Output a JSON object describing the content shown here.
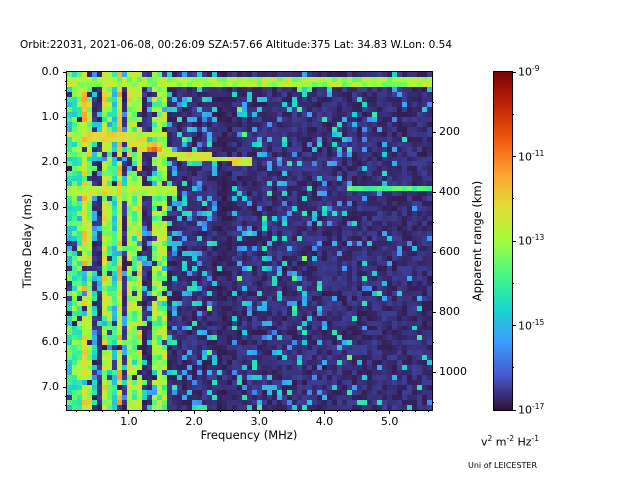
{
  "title": "Orbit:22031, 2021-06-08, 00:26:09 SZA:57.66 Altitude:375 Lat: 34.83 W.Lon: 0.54",
  "watermark": "Uni of LEICESTER",
  "chart_data": {
    "type": "heatmap",
    "description": "Radar sounder ionogram: spectral power density vs frequency and time delay. Bright surface echo line near 0.2 ms across all frequencies, dense cyan/green vertical interference stripes below ~1.6 MHz, an ionospheric echo trace from ~1.4 ms at 0.4 MHz descending to ~2.0 ms at 2.9 MHz with an orange peak near 1.4 MHz / 1.7 ms, a faint second trace near 2.6 ms, a dark quiet band near 2.45 MHz, and sparse blue noise speckle elsewhere.",
    "xlabel": "Frequency (MHz)",
    "ylabel": "Time Delay (ms)",
    "ylabel_right": "Apparent range (km)",
    "x_range": [
      0.05,
      5.65
    ],
    "y_range": [
      0.0,
      7.5
    ],
    "x_ticks": [
      1.0,
      2.0,
      3.0,
      4.0,
      5.0
    ],
    "x_tick_labels": [
      "1.0",
      "2.0",
      "3.0",
      "4.0",
      "5.0"
    ],
    "x_minor_step": 0.2,
    "y_ticks": [
      0,
      1,
      2,
      3,
      4,
      5,
      6,
      7
    ],
    "y_tick_labels": [
      "0.0",
      "1.0",
      "2.0",
      "3.0",
      "4.0",
      "5.0",
      "6.0",
      "7.0"
    ],
    "y_minor_step": 0.2,
    "right_ticks_km": [
      200,
      400,
      600,
      800,
      1000
    ],
    "right_tick_labels": [
      "200",
      "400",
      "600",
      "800",
      "1000"
    ],
    "right_minor_km": [
      100,
      300,
      500,
      700,
      900,
      1100
    ],
    "km_per_ms": 150,
    "colorbar": {
      "ticks_exp": [
        -9,
        -11,
        -13,
        -15,
        -17
      ],
      "minor_exp": [
        -10,
        -12,
        -14,
        -16
      ],
      "range_exp": [
        -17,
        -9
      ],
      "base": "10",
      "label_parts": [
        [
          "v",
          "2"
        ],
        [
          " m",
          "-2"
        ],
        [
          " Hz",
          "-1"
        ]
      ]
    },
    "colormap": "turbo",
    "colormap_stops": [
      [
        0.0,
        "#30123B"
      ],
      [
        0.1,
        "#4458CB"
      ],
      [
        0.2,
        "#3E9BFE"
      ],
      [
        0.3,
        "#18D6CB"
      ],
      [
        0.4,
        "#46F884"
      ],
      [
        0.5,
        "#A2FC3C"
      ],
      [
        0.6,
        "#E1DD37"
      ],
      [
        0.7,
        "#FEA130"
      ],
      [
        0.8,
        "#EF5A11"
      ],
      [
        0.9,
        "#C22403"
      ],
      [
        1.0,
        "#7A0403"
      ]
    ],
    "grid": {
      "cols": 73,
      "rows": 68
    },
    "seed": 1337,
    "features": {
      "surface_echo": {
        "delay": 0.22,
        "thickness": 0.12,
        "t": 0.42
      },
      "stripe_region": {
        "f_max": 1.62,
        "density": 0.55,
        "bright_rows": [
          1.38,
          2.62
        ],
        "bright_row_halfwidth": 0.1
      },
      "dark_band": {
        "f0": 2.35,
        "f1": 2.56
      },
      "traces": [
        {
          "points": [
            [
              0.35,
              1.42
            ],
            [
              0.9,
              1.45
            ],
            [
              1.2,
              1.55
            ],
            [
              1.45,
              1.75
            ],
            [
              1.8,
              1.85
            ],
            [
              2.3,
              1.92
            ],
            [
              2.92,
              1.97
            ]
          ],
          "t": 0.58,
          "width": 0.1
        },
        {
          "points": [
            [
              0.75,
              2.58
            ],
            [
              1.3,
              2.62
            ],
            [
              1.7,
              2.68
            ]
          ],
          "t": 0.5,
          "width": 0.09
        },
        {
          "points": [
            [
              4.35,
              2.6
            ],
            [
              5.62,
              2.6
            ]
          ],
          "t": 0.4,
          "width": 0.08
        }
      ],
      "hot_blob": {
        "f": 1.38,
        "sf": 0.16,
        "delay": 1.68,
        "sd": 0.11,
        "t": 0.82
      }
    }
  }
}
